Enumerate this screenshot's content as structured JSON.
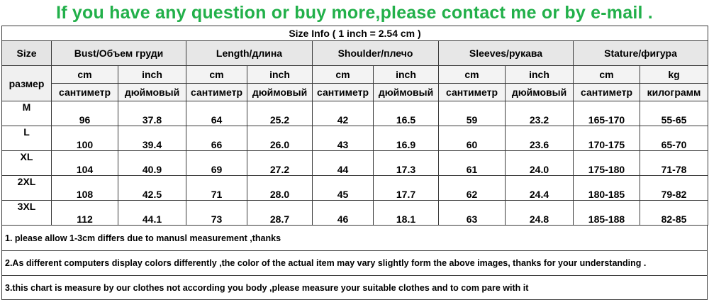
{
  "banner": "If you have any question or buy more,please contact me or by e-mail .",
  "size_info": "Size Info ( 1 inch = 2.54 cm )",
  "size_header": {
    "top": "Size",
    "bottom": "размер"
  },
  "groups": [
    "Bust/Объем груди",
    "Length/длина",
    "Shoulder/плечо",
    "Sleeves/рукава",
    "Stature/фигура"
  ],
  "units": [
    "cm",
    "inch",
    "cm",
    "inch",
    "cm",
    "inch",
    "cm",
    "inch",
    "cm",
    "kg"
  ],
  "units_ru": [
    "сантиметр",
    "дюймовый",
    "сантиметр",
    "дюймовый",
    "сантиметр",
    "дюймовый",
    "сантиметр",
    "дюймовый",
    "сантиметр",
    "килограмм"
  ],
  "rows": [
    {
      "size": "M",
      "values": [
        "96",
        "37.8",
        "64",
        "25.2",
        "42",
        "16.5",
        "59",
        "23.2",
        "165-170",
        "55-65"
      ]
    },
    {
      "size": "L",
      "values": [
        "100",
        "39.4",
        "66",
        "26.0",
        "43",
        "16.9",
        "60",
        "23.6",
        "170-175",
        "65-70"
      ]
    },
    {
      "size": "XL",
      "values": [
        "104",
        "40.9",
        "69",
        "27.2",
        "44",
        "17.3",
        "61",
        "24.0",
        "175-180",
        "71-78"
      ]
    },
    {
      "size": "2XL",
      "values": [
        "108",
        "42.5",
        "71",
        "28.0",
        "45",
        "17.7",
        "62",
        "24.4",
        "180-185",
        "79-82"
      ]
    },
    {
      "size": "3XL",
      "values": [
        "112",
        "44.1",
        "73",
        "28.7",
        "46",
        "18.1",
        "63",
        "24.8",
        "185-188",
        "82-85"
      ]
    }
  ],
  "notes": [
    "1. please allow 1-3cm differs due to manusl measurement ,thanks",
    "2.As different computers display colors differently ,the color of the actual item may vary slightly form the above images, thanks for your understanding .",
    "3.this chart is measure by our clothes not according you body ,please measure your suitable clothes and to com pare with it"
  ],
  "colors": {
    "banner": "#22b04a",
    "border": "#3a3a3a",
    "header_bg": "#e7e7e7"
  }
}
